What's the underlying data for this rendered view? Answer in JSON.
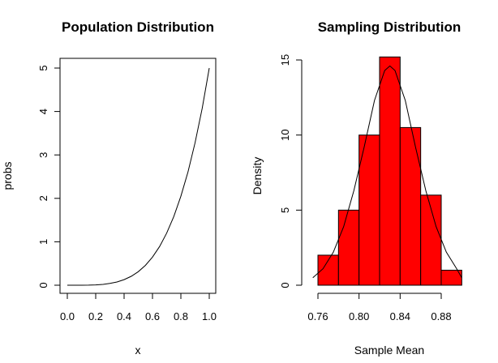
{
  "chart_data": [
    {
      "type": "line",
      "title": "Population Distribution",
      "xlabel": "x",
      "ylabel": "probs",
      "xlim": [
        0,
        1
      ],
      "ylim": [
        0,
        5
      ],
      "x_ticks": [
        0.0,
        0.2,
        0.4,
        0.6,
        0.8,
        1.0
      ],
      "x_tick_labels": [
        "0.0",
        "0.2",
        "0.4",
        "0.6",
        "0.8",
        "1.0"
      ],
      "y_ticks": [
        0,
        1,
        2,
        3,
        4,
        5
      ],
      "y_tick_labels": [
        "0",
        "1",
        "2",
        "3",
        "4",
        "5"
      ],
      "box": true,
      "grid": false,
      "series": [
        {
          "x": [
            0,
            0.05,
            0.1,
            0.15,
            0.2,
            0.25,
            0.3,
            0.35,
            0.4,
            0.45,
            0.5,
            0.55,
            0.6,
            0.65,
            0.7,
            0.75,
            0.8,
            0.85,
            0.9,
            0.95,
            1.0
          ],
          "y": [
            0,
            3e-05,
            0.0005,
            0.0025,
            0.008,
            0.0195,
            0.0405,
            0.075,
            0.128,
            0.205,
            0.3125,
            0.4575,
            0.648,
            0.8925,
            1.2005,
            1.582,
            2.048,
            2.61,
            3.2805,
            4.0725,
            5.0
          ]
        }
      ]
    },
    {
      "type": "bar",
      "title": "Sampling Distribution",
      "xlabel": "Sample Mean",
      "ylabel": "Density",
      "xlim": [
        0.755,
        0.9
      ],
      "ylim": [
        0,
        15.5
      ],
      "x_ticks": [
        0.76,
        0.8,
        0.84,
        0.88
      ],
      "x_tick_labels": [
        "0.76",
        "0.80",
        "0.84",
        "0.88"
      ],
      "y_ticks": [
        0,
        5,
        10,
        15
      ],
      "y_tick_labels": [
        "0",
        "5",
        "10",
        "15"
      ],
      "box": false,
      "grid": false,
      "bar_color": "#ff0000",
      "bins": [
        {
          "start": 0.76,
          "end": 0.78,
          "value": 2
        },
        {
          "start": 0.78,
          "end": 0.8,
          "value": 5
        },
        {
          "start": 0.8,
          "end": 0.82,
          "value": 10
        },
        {
          "start": 0.82,
          "end": 0.84,
          "value": 15.2
        },
        {
          "start": 0.84,
          "end": 0.86,
          "value": 10.5
        },
        {
          "start": 0.86,
          "end": 0.88,
          "value": 6
        },
        {
          "start": 0.88,
          "end": 0.9,
          "value": 1
        }
      ],
      "density_curve": {
        "x": [
          0.755,
          0.765,
          0.775,
          0.785,
          0.795,
          0.805,
          0.815,
          0.825,
          0.83,
          0.835,
          0.845,
          0.855,
          0.865,
          0.875,
          0.885,
          0.895,
          0.9
        ],
        "y": [
          0.5,
          1.1,
          2.2,
          3.9,
          6.3,
          9.2,
          12.3,
          14.3,
          14.6,
          14.3,
          12.3,
          9.2,
          6.3,
          3.9,
          2.2,
          1.1,
          0.5
        ]
      }
    }
  ]
}
